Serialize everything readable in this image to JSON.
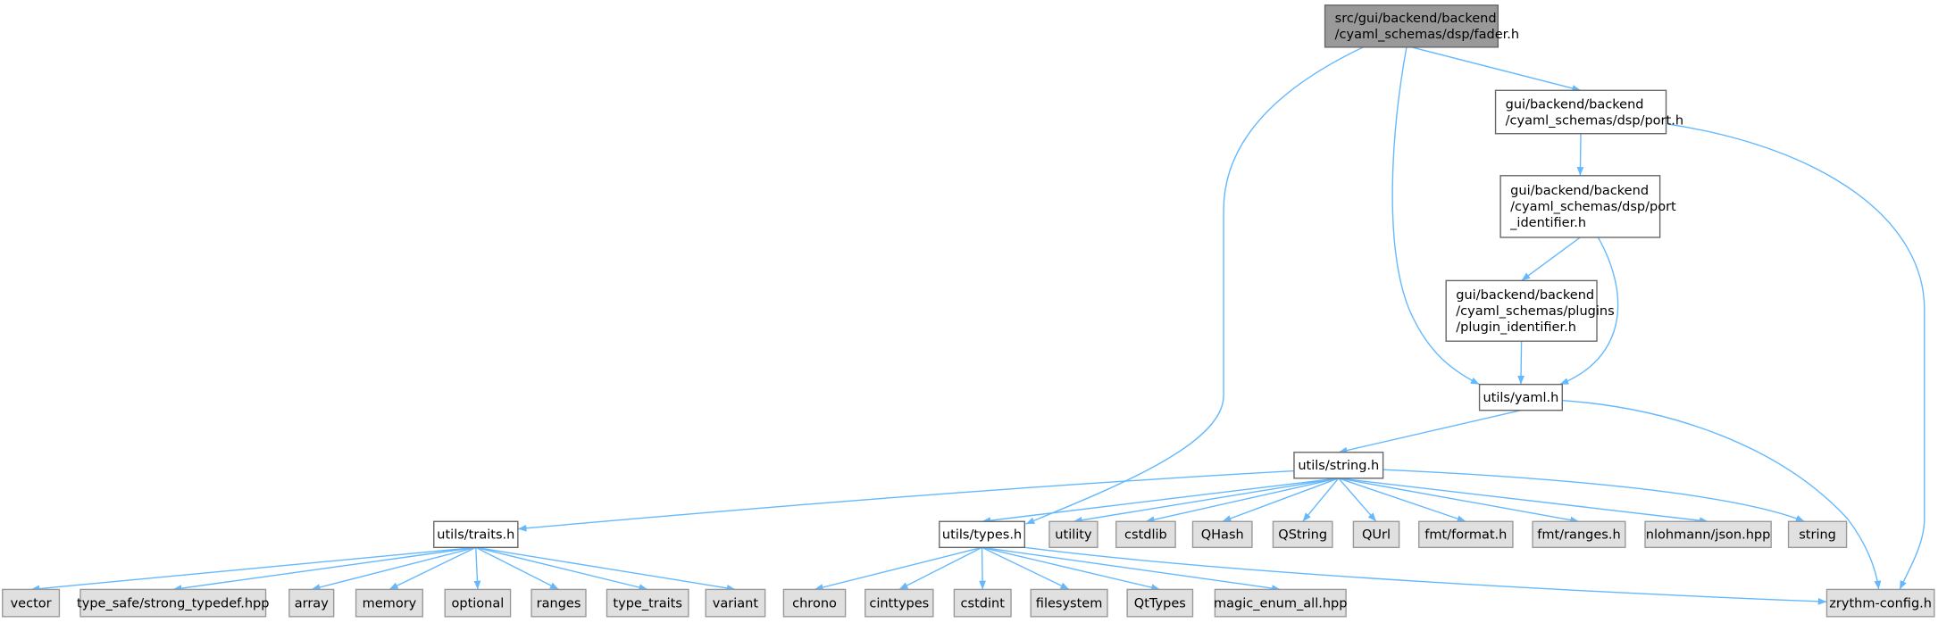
{
  "diagram": {
    "type": "include-dependency-graph",
    "colors": {
      "edge": "#63b8ff",
      "root_fill": "#999999",
      "root_border": "#666666",
      "file_fill": "#ffffff",
      "file_border": "#666666",
      "system_fill": "#e0e0e0",
      "system_border": "#999999"
    },
    "nodes": [
      {
        "id": "fader",
        "lines": [
          "src/gui/backend/backend",
          "/cyaml_schemas/dsp/fader.h"
        ],
        "kind": "root"
      },
      {
        "id": "port",
        "lines": [
          "gui/backend/backend",
          "/cyaml_schemas/dsp/port.h"
        ],
        "kind": "file"
      },
      {
        "id": "port_identifier",
        "lines": [
          "gui/backend/backend",
          "/cyaml_schemas/dsp/port",
          "_identifier.h"
        ],
        "kind": "file"
      },
      {
        "id": "plugin_identifier",
        "lines": [
          "gui/backend/backend",
          "/cyaml_schemas/plugins",
          "/plugin_identifier.h"
        ],
        "kind": "file"
      },
      {
        "id": "yaml",
        "lines": [
          "utils/yaml.h"
        ],
        "kind": "file"
      },
      {
        "id": "string_h",
        "lines": [
          "utils/string.h"
        ],
        "kind": "file"
      },
      {
        "id": "traits",
        "lines": [
          "utils/traits.h"
        ],
        "kind": "file"
      },
      {
        "id": "types",
        "lines": [
          "utils/types.h"
        ],
        "kind": "file"
      },
      {
        "id": "utility",
        "lines": [
          "utility"
        ],
        "kind": "system"
      },
      {
        "id": "cstdlib",
        "lines": [
          "cstdlib"
        ],
        "kind": "system"
      },
      {
        "id": "QHash",
        "lines": [
          "QHash"
        ],
        "kind": "system"
      },
      {
        "id": "QString",
        "lines": [
          "QString"
        ],
        "kind": "system"
      },
      {
        "id": "QUrl",
        "lines": [
          "QUrl"
        ],
        "kind": "system"
      },
      {
        "id": "fmt_format",
        "lines": [
          "fmt/format.h"
        ],
        "kind": "system"
      },
      {
        "id": "fmt_ranges",
        "lines": [
          "fmt/ranges.h"
        ],
        "kind": "system"
      },
      {
        "id": "json",
        "lines": [
          "nlohmann/json.hpp"
        ],
        "kind": "system"
      },
      {
        "id": "string",
        "lines": [
          "string"
        ],
        "kind": "system"
      },
      {
        "id": "vector",
        "lines": [
          "vector"
        ],
        "kind": "system"
      },
      {
        "id": "strong_typedef",
        "lines": [
          "type_safe/strong_typedef.hpp"
        ],
        "kind": "system"
      },
      {
        "id": "array",
        "lines": [
          "array"
        ],
        "kind": "system"
      },
      {
        "id": "memory",
        "lines": [
          "memory"
        ],
        "kind": "system"
      },
      {
        "id": "optional",
        "lines": [
          "optional"
        ],
        "kind": "system"
      },
      {
        "id": "ranges",
        "lines": [
          "ranges"
        ],
        "kind": "system"
      },
      {
        "id": "type_traits",
        "lines": [
          "type_traits"
        ],
        "kind": "system"
      },
      {
        "id": "variant",
        "lines": [
          "variant"
        ],
        "kind": "system"
      },
      {
        "id": "chrono",
        "lines": [
          "chrono"
        ],
        "kind": "system"
      },
      {
        "id": "cinttypes",
        "lines": [
          "cinttypes"
        ],
        "kind": "system"
      },
      {
        "id": "cstdint",
        "lines": [
          "cstdint"
        ],
        "kind": "system"
      },
      {
        "id": "filesystem",
        "lines": [
          "filesystem"
        ],
        "kind": "system"
      },
      {
        "id": "QtTypes",
        "lines": [
          "QtTypes"
        ],
        "kind": "system"
      },
      {
        "id": "magic_enum",
        "lines": [
          "magic_enum_all.hpp"
        ],
        "kind": "system"
      },
      {
        "id": "zrythm_config",
        "lines": [
          "zrythm-config.h"
        ],
        "kind": "system"
      }
    ],
    "edges": [
      [
        "fader",
        "port"
      ],
      [
        "fader",
        "yaml"
      ],
      [
        "fader",
        "types"
      ],
      [
        "port",
        "port_identifier"
      ],
      [
        "port",
        "zrythm_config"
      ],
      [
        "port_identifier",
        "plugin_identifier"
      ],
      [
        "port_identifier",
        "yaml"
      ],
      [
        "plugin_identifier",
        "yaml"
      ],
      [
        "yaml",
        "string_h"
      ],
      [
        "yaml",
        "zrythm_config"
      ],
      [
        "string_h",
        "traits"
      ],
      [
        "string_h",
        "types"
      ],
      [
        "string_h",
        "utility"
      ],
      [
        "string_h",
        "cstdlib"
      ],
      [
        "string_h",
        "QHash"
      ],
      [
        "string_h",
        "QString"
      ],
      [
        "string_h",
        "QUrl"
      ],
      [
        "string_h",
        "fmt_format"
      ],
      [
        "string_h",
        "fmt_ranges"
      ],
      [
        "string_h",
        "json"
      ],
      [
        "string_h",
        "string"
      ],
      [
        "traits",
        "vector"
      ],
      [
        "traits",
        "strong_typedef"
      ],
      [
        "traits",
        "array"
      ],
      [
        "traits",
        "memory"
      ],
      [
        "traits",
        "optional"
      ],
      [
        "traits",
        "ranges"
      ],
      [
        "traits",
        "type_traits"
      ],
      [
        "traits",
        "variant"
      ],
      [
        "types",
        "chrono"
      ],
      [
        "types",
        "cinttypes"
      ],
      [
        "types",
        "cstdint"
      ],
      [
        "types",
        "filesystem"
      ],
      [
        "types",
        "QtTypes"
      ],
      [
        "types",
        "magic_enum"
      ],
      [
        "types",
        "zrythm_config"
      ]
    ]
  }
}
